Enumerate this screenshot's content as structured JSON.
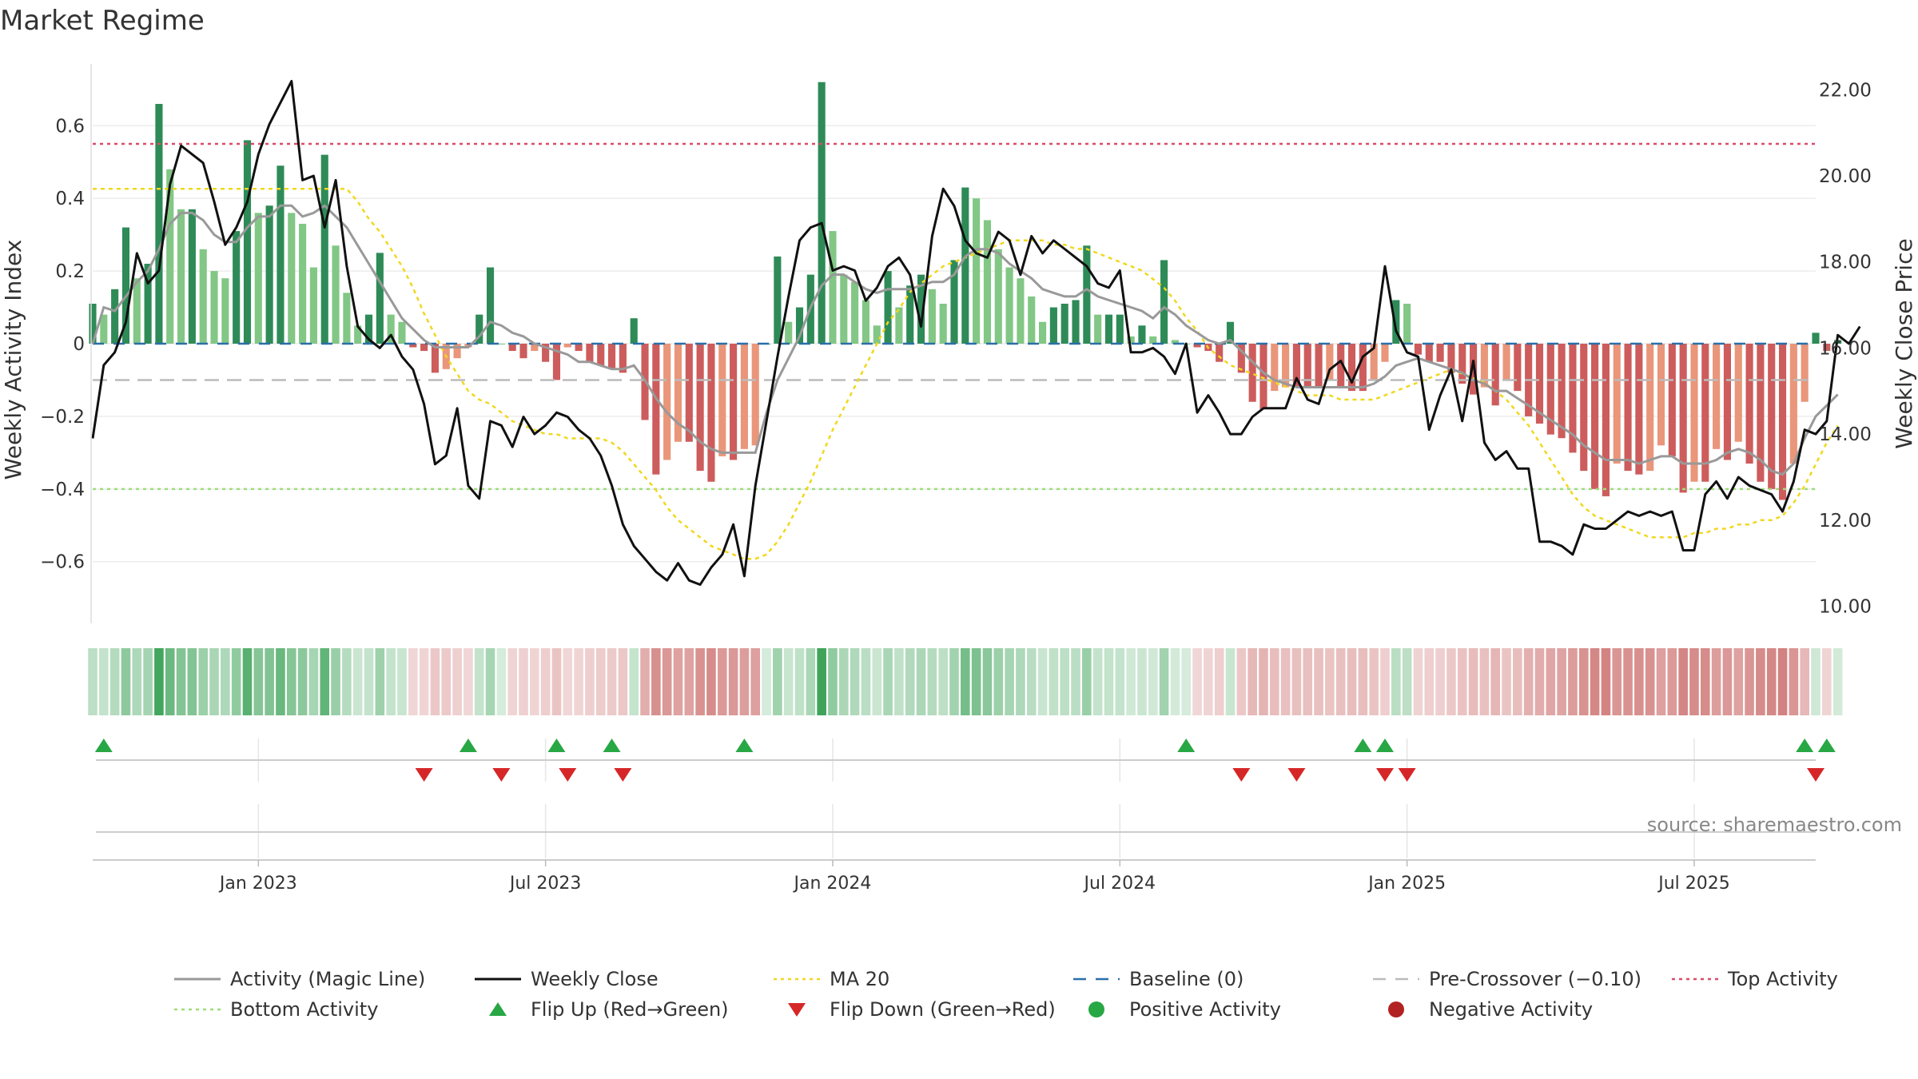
{
  "title": "Market Regime",
  "source": "source: sharemaestro.com",
  "colors": {
    "dark_green": "#2e8b57",
    "light_green": "#82c785",
    "dark_red": "#cd5c5c",
    "light_red": "#e9967a",
    "magic": "#999999",
    "close": "#111111",
    "ma20": "#f0d81e",
    "baseline": "#2a6fa8",
    "precross": "#bbbbbb",
    "top": "#d84c6a",
    "bottom": "#9edd7b",
    "flip_up": "#28a745",
    "flip_down": "#d62728",
    "pos_dot": "#28a745",
    "neg_dot": "#b22222"
  },
  "chart_data": {
    "type": "bar",
    "title": "Market Regime",
    "y_left_label": "Weekly Activity Index",
    "y_right_label": "Weekly Close Price",
    "y_left_ticks": [
      "0.6",
      "0.4",
      "0.2",
      "0",
      "−0.2",
      "−0.4",
      "−0.6"
    ],
    "y_left_tick_values": [
      0.6,
      0.4,
      0.2,
      0,
      -0.2,
      -0.4,
      -0.6
    ],
    "y_right_ticks": [
      "22.00",
      "20.00",
      "18.00",
      "16.00",
      "14.00",
      "12.00",
      "10.00"
    ],
    "y_right_tick_values": [
      22,
      20,
      18,
      16,
      14,
      12,
      10
    ],
    "y_left_range": [
      -0.77,
      0.77
    ],
    "y_right_range": [
      9.6,
      22.6
    ],
    "x_ticks": [
      {
        "label": "Jan 2023",
        "week": 15
      },
      {
        "label": "Jul 2023",
        "week": 41
      },
      {
        "label": "Jan 2024",
        "week": 67
      },
      {
        "label": "Jul 2024",
        "week": 93
      },
      {
        "label": "Jan 2025",
        "week": 119
      },
      {
        "label": "Jul 2025",
        "week": 145
      }
    ],
    "week_count": 157,
    "levels": {
      "baseline": 0,
      "pre_crossover": -0.1,
      "top": 0.55,
      "bottom": -0.4
    },
    "activity": [
      0.11,
      0.08,
      0.15,
      0.32,
      0.18,
      0.22,
      0.66,
      0.48,
      0.37,
      0.37,
      0.26,
      0.2,
      0.18,
      0.31,
      0.56,
      0.36,
      0.38,
      0.49,
      0.36,
      0.33,
      0.21,
      0.52,
      0.27,
      0.14,
      0.05,
      0.08,
      0.25,
      0.08,
      0.06,
      -0.01,
      -0.02,
      -0.08,
      -0.07,
      -0.04,
      -0.01,
      0.08,
      0.21,
      0,
      -0.02,
      -0.04,
      -0.02,
      -0.05,
      -0.1,
      -0.01,
      -0.02,
      -0.05,
      -0.06,
      -0.07,
      -0.08,
      0.07,
      -0.21,
      -0.36,
      -0.32,
      -0.27,
      -0.27,
      -0.35,
      -0.38,
      -0.31,
      -0.32,
      -0.29,
      -0.28,
      0,
      0.24,
      0.06,
      0.1,
      0.19,
      0.72,
      0.31,
      0.19,
      0.17,
      0.12,
      0.05,
      0.2,
      0.1,
      0.16,
      0.19,
      0.15,
      0.11,
      0.23,
      0.43,
      0.4,
      0.34,
      0.26,
      0.21,
      0.18,
      0.13,
      0.06,
      0.1,
      0.11,
      0.12,
      0.27,
      0.08,
      0.08,
      0.08,
      0.02,
      0.05,
      0.02,
      0.23,
      0.01,
      0,
      -0.01,
      -0.02,
      -0.05,
      0.06,
      -0.08,
      -0.16,
      -0.18,
      -0.13,
      -0.12,
      -0.12,
      -0.12,
      -0.12,
      -0.1,
      -0.12,
      -0.13,
      -0.13,
      -0.1,
      -0.05,
      0.12,
      0.11,
      -0.03,
      -0.05,
      -0.05,
      -0.08,
      -0.11,
      -0.14,
      -0.12,
      -0.17,
      -0.1,
      -0.13,
      -0.2,
      -0.22,
      -0.25,
      -0.26,
      -0.3,
      -0.35,
      -0.4,
      -0.42,
      -0.33,
      -0.35,
      -0.36,
      -0.35,
      -0.28,
      -0.31,
      -0.41,
      -0.38,
      -0.38,
      -0.29,
      -0.32,
      -0.27,
      -0.33,
      -0.38,
      -0.4,
      -0.43,
      -0.33,
      -0.16,
      0.03,
      -0.02,
      0.01
    ],
    "magic_line": [
      0,
      0.1,
      0.09,
      0.13,
      0.17,
      0.2,
      0.26,
      0.33,
      0.36,
      0.36,
      0.34,
      0.3,
      0.28,
      0.28,
      0.32,
      0.35,
      0.35,
      0.38,
      0.38,
      0.35,
      0.36,
      0.38,
      0.35,
      0.32,
      0.27,
      0.22,
      0.17,
      0.12,
      0.07,
      0.04,
      0.01,
      -0.01,
      -0.01,
      -0.01,
      -0.01,
      0.02,
      0.06,
      0.05,
      0.03,
      0.02,
      0,
      -0.01,
      -0.02,
      -0.03,
      -0.05,
      -0.05,
      -0.06,
      -0.07,
      -0.07,
      -0.06,
      -0.1,
      -0.15,
      -0.19,
      -0.22,
      -0.24,
      -0.27,
      -0.29,
      -0.3,
      -0.3,
      -0.3,
      -0.3,
      -0.19,
      -0.1,
      -0.04,
      0.02,
      0.1,
      0.16,
      0.19,
      0.19,
      0.17,
      0.15,
      0.14,
      0.15,
      0.15,
      0.15,
      0.16,
      0.17,
      0.17,
      0.19,
      0.24,
      0.26,
      0.26,
      0.25,
      0.22,
      0.2,
      0.18,
      0.15,
      0.14,
      0.13,
      0.13,
      0.15,
      0.13,
      0.12,
      0.11,
      0.1,
      0.09,
      0.07,
      0.1,
      0.08,
      0.05,
      0.03,
      0.01,
      0,
      0.01,
      -0.02,
      -0.05,
      -0.08,
      -0.1,
      -0.11,
      -0.12,
      -0.12,
      -0.12,
      -0.12,
      -0.12,
      -0.12,
      -0.12,
      -0.11,
      -0.09,
      -0.06,
      -0.05,
      -0.04,
      -0.05,
      -0.06,
      -0.07,
      -0.08,
      -0.1,
      -0.11,
      -0.13,
      -0.13,
      -0.15,
      -0.17,
      -0.19,
      -0.21,
      -0.23,
      -0.25,
      -0.28,
      -0.3,
      -0.32,
      -0.32,
      -0.32,
      -0.33,
      -0.32,
      -0.31,
      -0.31,
      -0.33,
      -0.33,
      -0.33,
      -0.32,
      -0.3,
      -0.29,
      -0.3,
      -0.32,
      -0.35,
      -0.36,
      -0.33,
      -0.26,
      -0.2,
      -0.17,
      -0.14
    ],
    "weekly_close": [
      13.9,
      15.6,
      15.9,
      16.6,
      18.2,
      17.5,
      17.8,
      19.8,
      20.7,
      20.5,
      20.3,
      19.4,
      18.4,
      18.8,
      19.4,
      20.5,
      21.2,
      21.7,
      22.2,
      19.9,
      20.0,
      18.8,
      19.9,
      17.9,
      16.5,
      16.2,
      16.0,
      16.3,
      15.8,
      15.5,
      14.7,
      13.3,
      13.5,
      14.6,
      12.8,
      12.5,
      14.3,
      14.2,
      13.7,
      14.4,
      14.0,
      14.2,
      14.5,
      14.4,
      14.1,
      13.9,
      13.5,
      12.8,
      11.9,
      11.4,
      11.1,
      10.8,
      10.6,
      11.0,
      10.6,
      10.5,
      10.9,
      11.2,
      11.9,
      10.7,
      12.8,
      14.3,
      15.8,
      17.2,
      18.5,
      18.8,
      18.9,
      17.8,
      17.9,
      17.8,
      17.1,
      17.4,
      17.9,
      18.1,
      17.7,
      16.5,
      18.6,
      19.7,
      19.3,
      18.5,
      18.2,
      18.1,
      18.7,
      18.5,
      17.7,
      18.6,
      18.2,
      18.5,
      18.3,
      18.1,
      17.9,
      17.5,
      17.4,
      17.8,
      15.9,
      15.9,
      16.0,
      15.8,
      15.4,
      16.1,
      14.5,
      14.9,
      14.5,
      14.0,
      14.0,
      14.4,
      14.6,
      14.6,
      14.6,
      15.3,
      14.8,
      14.7,
      15.5,
      15.7,
      15.2,
      15.8,
      16.0,
      17.9,
      16.4,
      15.9,
      15.8,
      14.1,
      14.9,
      15.5,
      14.3,
      15.7,
      13.8,
      13.4,
      13.6,
      13.2,
      13.2,
      11.5,
      11.5,
      11.4,
      11.2,
      11.9,
      11.8,
      11.8,
      12.0,
      12.2,
      12.1,
      12.2,
      12.1,
      12.2,
      11.3,
      11.3,
      12.6,
      12.9,
      12.5,
      13.0,
      12.8,
      12.7,
      12.6,
      12.2,
      12.9,
      14.1,
      14.0,
      14.3,
      16.3,
      16.1,
      16.5
    ],
    "ma20": [
      19.7,
      19.7,
      19.7,
      19.7,
      19.7,
      19.7,
      19.7,
      19.7,
      19.7,
      19.7,
      19.7,
      19.7,
      19.7,
      19.7,
      19.7,
      19.7,
      19.7,
      19.7,
      19.7,
      19.7,
      19.7,
      19.7,
      19.7,
      19.7,
      19.4,
      19.0,
      18.7,
      18.3,
      17.9,
      17.4,
      16.8,
      16.3,
      15.8,
      15.4,
      15.0,
      14.8,
      14.7,
      14.5,
      14.3,
      14.2,
      14.1,
      14.0,
      14.0,
      13.9,
      13.9,
      13.9,
      13.9,
      13.8,
      13.6,
      13.3,
      13.0,
      12.7,
      12.3,
      12.0,
      11.8,
      11.6,
      11.4,
      11.3,
      11.2,
      11.1,
      11.1,
      11.2,
      11.5,
      11.9,
      12.4,
      12.9,
      13.5,
      14.1,
      14.6,
      15.1,
      15.6,
      16.1,
      16.6,
      16.9,
      17.3,
      17.5,
      17.7,
      17.9,
      18.0,
      18.1,
      18.2,
      18.3,
      18.4,
      18.5,
      18.5,
      18.5,
      18.5,
      18.4,
      18.4,
      18.3,
      18.3,
      18.2,
      18.1,
      18.0,
      17.9,
      17.8,
      17.6,
      17.4,
      17.1,
      16.7,
      16.4,
      16.0,
      15.8,
      15.6,
      15.5,
      15.4,
      15.3,
      15.2,
      15.1,
      15.0,
      14.9,
      14.9,
      14.9,
      14.8,
      14.8,
      14.8,
      14.8,
      14.9,
      15.0,
      15.1,
      15.2,
      15.3,
      15.4,
      15.5,
      15.4,
      15.3,
      15.2,
      15.0,
      14.8,
      14.5,
      14.2,
      13.8,
      13.4,
      13.0,
      12.6,
      12.3,
      12.1,
      12.0,
      11.9,
      11.8,
      11.7,
      11.6,
      11.6,
      11.6,
      11.6,
      11.7,
      11.7,
      11.8,
      11.8,
      11.9,
      11.9,
      12.0,
      12.0,
      12.1,
      12.4,
      12.8,
      13.3,
      13.8,
      14.2
    ],
    "flip_up_weeks": [
      1,
      34,
      42,
      47,
      59,
      99,
      115,
      117,
      155,
      157
    ],
    "flip_down_weeks": [
      30,
      37,
      43,
      48,
      104,
      109,
      117,
      119,
      156
    ],
    "legend": [
      {
        "label": "Activity (Magic Line)",
        "style": "solid",
        "color": "#999999"
      },
      {
        "label": "Weekly Close",
        "style": "solid",
        "color": "#111111"
      },
      {
        "label": "MA 20",
        "style": "dotted",
        "color": "#f0d81e"
      },
      {
        "label": "Baseline (0)",
        "style": "dashed",
        "color": "#2a6fa8"
      },
      {
        "label": "Pre-Crossover (−0.10)",
        "style": "dashed",
        "color": "#bbbbbb"
      },
      {
        "label": "Top Activity",
        "style": "dotted",
        "color": "#d84c6a"
      },
      {
        "label": "Bottom Activity",
        "style": "dotted",
        "color": "#9edd7b"
      },
      {
        "label": "Flip Up (Red→Green)",
        "style": "triangle-up",
        "color": "#28a745"
      },
      {
        "label": "Flip Down (Green→Red)",
        "style": "triangle-down",
        "color": "#d62728"
      },
      {
        "label": "Positive Activity",
        "style": "dot",
        "color": "#28a745"
      },
      {
        "label": "Negative Activity",
        "style": "dot",
        "color": "#b22222"
      }
    ]
  }
}
